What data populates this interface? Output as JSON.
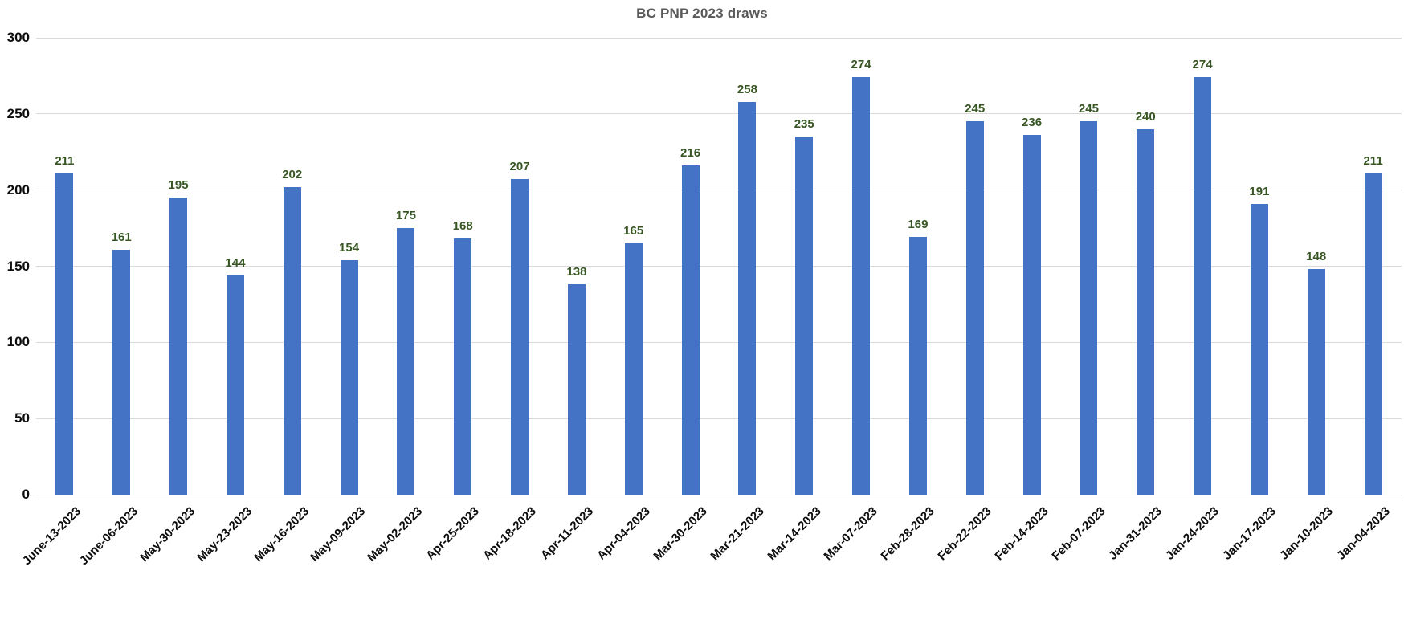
{
  "chart_data": {
    "type": "bar",
    "title": "BC PNP 2023 draws",
    "categories": [
      "June-13-2023",
      "June-06-2023",
      "May-30-2023",
      "May-23-2023",
      "May-16-2023",
      "May-09-2023",
      "May-02-2023",
      "Apr-25-2023",
      "Apr-18-2023",
      "Apr-11-2023",
      "Apr-04-2023",
      "Mar-30-2023",
      "Mar-21-2023",
      "Mar-14-2023",
      "Mar-07-2023",
      "Feb-28-2023",
      "Feb-22-2023",
      "Feb-14-2023",
      "Feb-07-2023",
      "Jan-31-2023",
      "Jan-24-2023",
      "Jan-17-2023",
      "Jan-10-2023",
      "Jan-04-2023"
    ],
    "values": [
      211,
      161,
      195,
      144,
      202,
      154,
      175,
      168,
      207,
      138,
      165,
      216,
      258,
      235,
      274,
      169,
      245,
      236,
      245,
      240,
      274,
      191,
      148,
      211
    ],
    "xlabel": "",
    "ylabel": "",
    "ylim": [
      0,
      300
    ],
    "ytick_interval": 50,
    "ytick_labels": [
      "0",
      "50",
      "100",
      "150",
      "200",
      "250",
      "300"
    ],
    "grid": "horizontal",
    "legend": "none",
    "data_labels": "above-bars",
    "colors": {
      "bar": "#4472C4",
      "value_label": "#375623",
      "title": "#595959",
      "axis_text": "#0d0d0d",
      "gridline": "#d9d9d9"
    }
  }
}
